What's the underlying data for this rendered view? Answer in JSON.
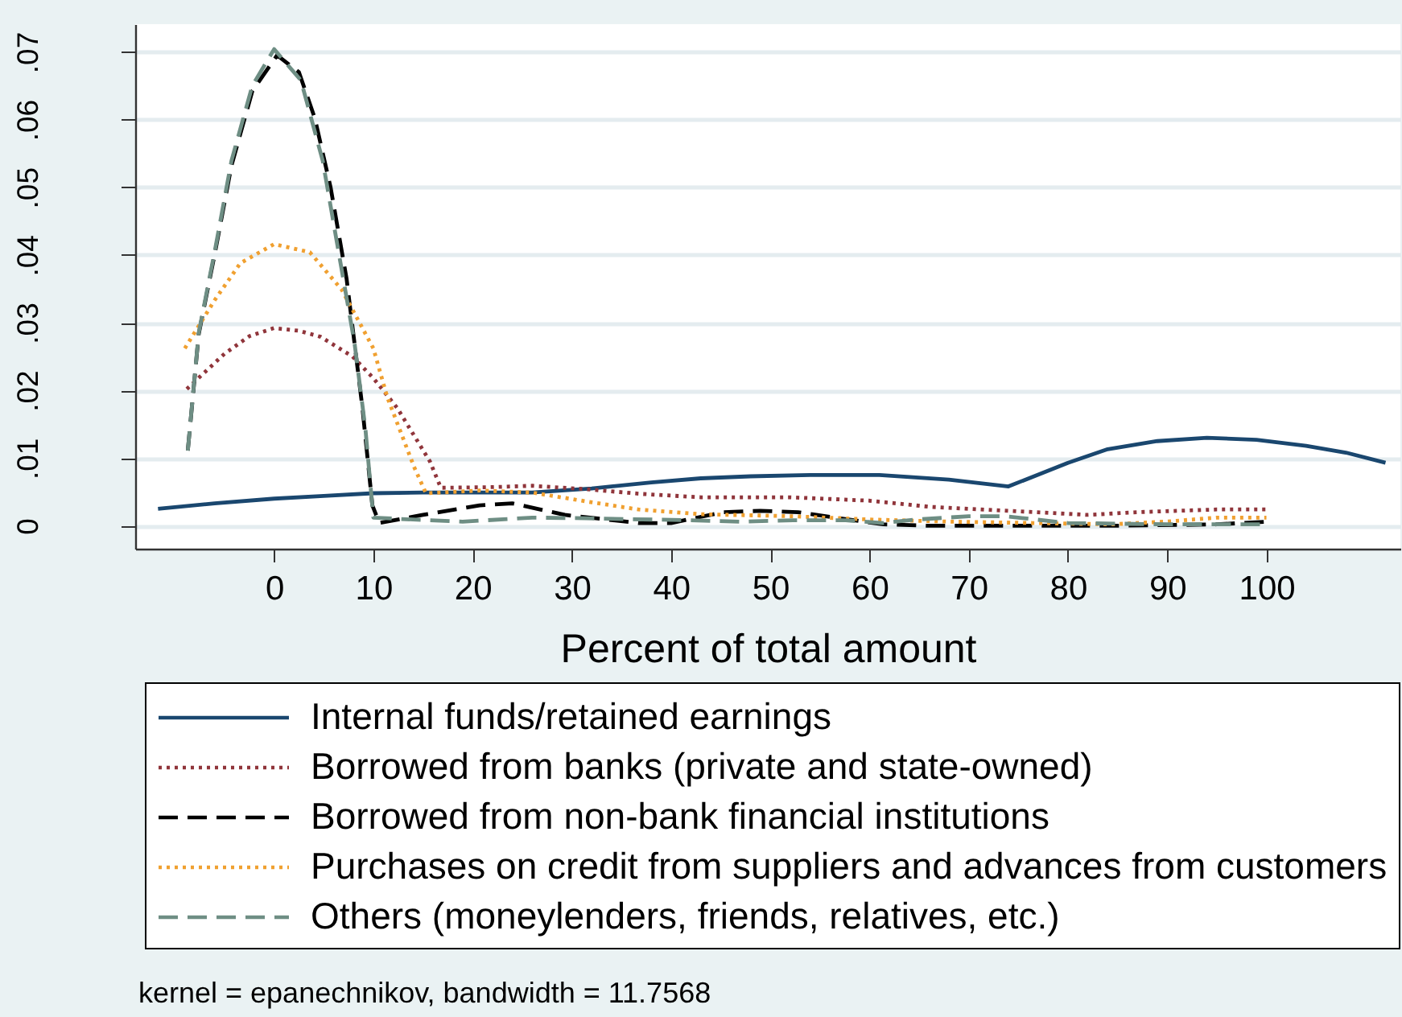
{
  "chart_data": {
    "type": "line",
    "xlabel": "Percent of total amount",
    "xlim": [
      -14,
      113.5
    ],
    "xticks": [
      0,
      10,
      20,
      30,
      40,
      50,
      60,
      70,
      80,
      90,
      100
    ],
    "ylim": [
      -0.0034,
      0.0741
    ],
    "yticks": [
      0,
      {
        "value": 0.01,
        "label": ".01"
      },
      {
        "value": 0.02,
        "label": ".02"
      },
      {
        "value": 0.03,
        "label": ".03"
      },
      {
        "value": 0.04,
        "label": ".04"
      },
      {
        "value": 0.05,
        "label": ".05"
      },
      {
        "value": 0.06,
        "label": ".06"
      },
      {
        "value": 0.07,
        "label": ".07"
      }
    ],
    "grid": "y",
    "legend": "bottom",
    "annotations": [
      "kernel = epanechnikov, bandwidth = 11.7568"
    ],
    "series": [
      {
        "name": "Internal funds/retained earnings",
        "color": "#1a476f",
        "line_style": "solid",
        "x": [
          -11.7,
          -6,
          0,
          5,
          10,
          15,
          20,
          26,
          32,
          38,
          43,
          48,
          54,
          61,
          68,
          74,
          80,
          84,
          89,
          94,
          99,
          104,
          108,
          112
        ],
        "values": [
          0.0025,
          0.0033,
          0.004,
          0.0044,
          0.0048,
          0.0049,
          0.0049,
          0.0049,
          0.0055,
          0.0064,
          0.007,
          0.0073,
          0.0075,
          0.0075,
          0.0068,
          0.0058,
          0.0093,
          0.0113,
          0.0125,
          0.013,
          0.0127,
          0.0118,
          0.0108,
          0.0093
        ]
      },
      {
        "name": "Borrowed from banks (private and state-owned)",
        "color": "#90353b",
        "line_style": "dotted",
        "x": [
          -8.8,
          -5,
          -2.5,
          0,
          2.5,
          4.7,
          7.9,
          10,
          12.4,
          15.7,
          16.8,
          22,
          26,
          31.4,
          37,
          43,
          52,
          60,
          66,
          74,
          82,
          87,
          95,
          100
        ],
        "values": [
          0.0202,
          0.0254,
          0.028,
          0.0292,
          0.0288,
          0.0279,
          0.025,
          0.0218,
          0.0174,
          0.0095,
          0.0056,
          0.0057,
          0.0059,
          0.0054,
          0.0047,
          0.0042,
          0.0042,
          0.0037,
          0.0028,
          0.0022,
          0.0016,
          0.002,
          0.0024,
          0.0024
        ]
      },
      {
        "name": "Borrowed from non-bank financial institutions",
        "color": "#000000",
        "line_style": "dashed",
        "x": [
          -8.7,
          -7.6,
          -5.9,
          -4.3,
          -2.2,
          0.3,
          2.5,
          4.1,
          5.7,
          7.3,
          8.9,
          9.9,
          10.6,
          15,
          20.7,
          24,
          29.3,
          36.7,
          40,
          45.3,
          49,
          52.8,
          56.5,
          61.4,
          66,
          75,
          85,
          95,
          100
        ],
        "values": [
          0.0111,
          0.0283,
          0.0408,
          0.0532,
          0.0642,
          0.0695,
          0.067,
          0.0602,
          0.0499,
          0.0365,
          0.0174,
          0.003,
          0.0004,
          0.0016,
          0.003,
          0.0033,
          0.0016,
          0.0004,
          0.0004,
          0.002,
          0.0022,
          0.002,
          0.0012,
          0.0002,
          0,
          0,
          0,
          0.0002,
          0.0006
        ]
      },
      {
        "name": "Purchases on credit from suppliers and advances from customers",
        "color": "#f0a030",
        "line_style": "dotted",
        "x": [
          -9,
          -6,
          -3.4,
          0,
          3.6,
          6.8,
          10,
          11.4,
          14.1,
          15.3,
          20.7,
          26,
          31.4,
          36.7,
          43,
          52.3,
          60.3,
          68.3,
          76.4,
          84.4,
          89.8,
          95.1,
          100
        ],
        "values": [
          0.0262,
          0.0333,
          0.0388,
          0.0416,
          0.0404,
          0.0349,
          0.0262,
          0.019,
          0.0087,
          0.0048,
          0.0052,
          0.0049,
          0.0036,
          0.0024,
          0.0017,
          0.0014,
          0.0009,
          0.0006,
          0.0004,
          0.0002,
          0.0006,
          0.0012,
          0.0012
        ]
      },
      {
        "name": "Others (moneylenders, friends, relatives, etc.)",
        "color": "#6e8e84",
        "line_style": "dashed",
        "x": [
          -8.7,
          -7.6,
          -5.9,
          -4.3,
          -2.2,
          0,
          2.7,
          4.9,
          6.5,
          8.1,
          9.2,
          10,
          12.7,
          19,
          26,
          31.4,
          42,
          47,
          52.3,
          57.6,
          61.4,
          64.6,
          70,
          73.7,
          80,
          90,
          100
        ],
        "values": [
          0.0111,
          0.0285,
          0.0412,
          0.0539,
          0.065,
          0.0704,
          0.0658,
          0.0539,
          0.0404,
          0.027,
          0.0143,
          0.0012,
          0.001,
          0.0006,
          0.0012,
          0.0011,
          0.0008,
          0.0006,
          0.0008,
          0.0008,
          0.0004,
          0.0009,
          0.0014,
          0.0014,
          0.0004,
          0.0002,
          0.0002
        ]
      }
    ]
  }
}
